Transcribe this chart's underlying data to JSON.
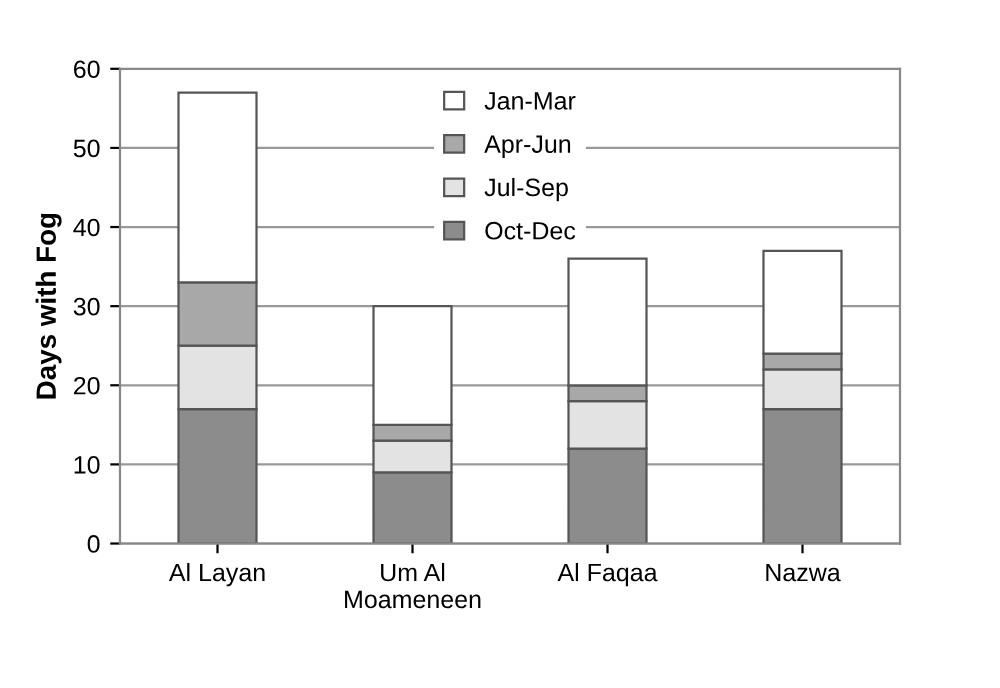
{
  "chart_data": {
    "type": "bar",
    "stacked": true,
    "ylabel": "Days with Fog",
    "categories": [
      "Al Layan",
      "Um Al\nMoameneen",
      "Al Faqaa",
      "Nazwa"
    ],
    "series": [
      {
        "name": "Oct-Dec",
        "color": "#8c8c8c",
        "values": [
          17,
          9,
          12,
          17
        ]
      },
      {
        "name": "Jul-Sep",
        "color": "#e3e3e3",
        "values": [
          8,
          4,
          6,
          5
        ]
      },
      {
        "name": "Apr-Jun",
        "color": "#a8a8a8",
        "values": [
          8,
          2,
          2,
          2
        ]
      },
      {
        "name": "Jan-Mar",
        "color": "#ffffff",
        "values": [
          24,
          15,
          16,
          13
        ]
      }
    ],
    "ylim": [
      0,
      60
    ],
    "yticks": [
      0,
      10,
      20,
      30,
      40,
      50,
      60
    ],
    "grid": "y",
    "legend": "top"
  }
}
